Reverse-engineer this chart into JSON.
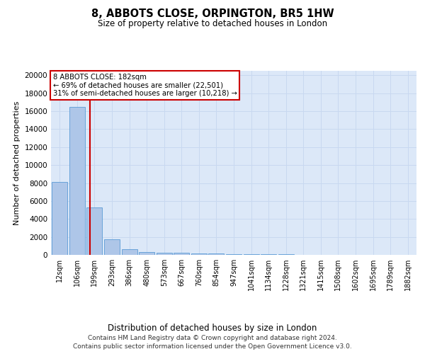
{
  "title": "8, ABBOTS CLOSE, ORPINGTON, BR5 1HW",
  "subtitle": "Size of property relative to detached houses in London",
  "xlabel": "Distribution of detached houses by size in London",
  "ylabel": "Number of detached properties",
  "categories": [
    "12sqm",
    "106sqm",
    "199sqm",
    "293sqm",
    "386sqm",
    "480sqm",
    "573sqm",
    "667sqm",
    "760sqm",
    "854sqm",
    "947sqm",
    "1041sqm",
    "1134sqm",
    "1228sqm",
    "1321sqm",
    "1415sqm",
    "1508sqm",
    "1602sqm",
    "1695sqm",
    "1789sqm",
    "1882sqm"
  ],
  "values": [
    8100,
    16500,
    5300,
    1750,
    650,
    350,
    270,
    220,
    185,
    130,
    90,
    70,
    55,
    45,
    35,
    28,
    22,
    18,
    15,
    12,
    10
  ],
  "bar_color": "#aec6e8",
  "bar_edge_color": "#5a9bd5",
  "grid_color": "#c8d8f0",
  "bg_color": "#dce8f8",
  "vline_color": "#cc0000",
  "vline_x": 1.72,
  "annotation_line1": "8 ABBOTS CLOSE: 182sqm",
  "annotation_line2": "← 69% of detached houses are smaller (22,501)",
  "annotation_line3": "31% of semi-detached houses are larger (10,218) →",
  "annotation_box_edgecolor": "#cc0000",
  "ylim": [
    0,
    20500
  ],
  "yticks": [
    0,
    2000,
    4000,
    6000,
    8000,
    10000,
    12000,
    14000,
    16000,
    18000,
    20000
  ],
  "footer_line1": "Contains HM Land Registry data © Crown copyright and database right 2024.",
  "footer_line2": "Contains public sector information licensed under the Open Government Licence v3.0."
}
